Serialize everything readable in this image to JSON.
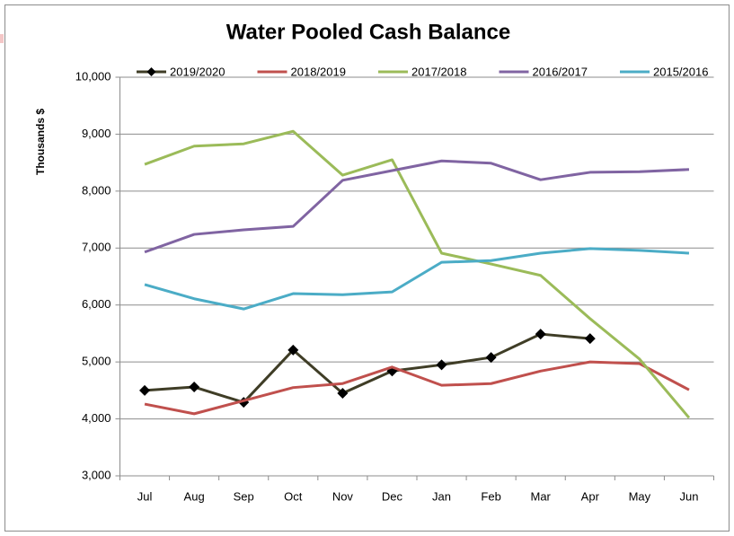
{
  "chart_data": {
    "type": "line",
    "title": "Water Pooled Cash Balance",
    "y_label": "Thousands $",
    "categories": [
      "Jul",
      "Aug",
      "Sep",
      "Oct",
      "Nov",
      "Dec",
      "Jan",
      "Feb",
      "Mar",
      "Apr",
      "May",
      "Jun"
    ],
    "ylim": [
      3000,
      10000
    ],
    "yticks": [
      {
        "value": 3000,
        "label": "3,000"
      },
      {
        "value": 4000,
        "label": "4,000"
      },
      {
        "value": 5000,
        "label": "5,000"
      },
      {
        "value": 6000,
        "label": "6,000"
      },
      {
        "value": 7000,
        "label": "7,000"
      },
      {
        "value": 8000,
        "label": "8,000"
      },
      {
        "value": 9000,
        "label": "9,000"
      },
      {
        "value": 10000,
        "label": "10,000"
      }
    ],
    "grid": true,
    "legend": "top",
    "series": [
      {
        "name": "2019/2020",
        "color": "#3f3d26",
        "marker": "diamond",
        "values": [
          4500,
          4560,
          4290,
          5210,
          4450,
          4840,
          4950,
          5080,
          5490,
          5410,
          null,
          null
        ]
      },
      {
        "name": "2018/2019",
        "color": "#c0504d",
        "values": [
          4260,
          4090,
          4320,
          4550,
          4620,
          4910,
          4590,
          4620,
          4840,
          5000,
          4970,
          4510
        ]
      },
      {
        "name": "2017/2018",
        "color": "#9bbb59",
        "values": [
          8470,
          8790,
          8830,
          9050,
          8280,
          8550,
          6910,
          6720,
          6520,
          5760,
          5050,
          4020
        ]
      },
      {
        "name": "2016/2017",
        "color": "#8064a2",
        "values": [
          6930,
          7240,
          7320,
          7380,
          8190,
          8360,
          8530,
          8490,
          8200,
          8330,
          8340,
          8380
        ]
      },
      {
        "name": "2015/2016",
        "color": "#4bacc6",
        "values": [
          6360,
          6110,
          5930,
          6200,
          6180,
          6230,
          6750,
          6780,
          6910,
          6990,
          6960,
          6910
        ]
      }
    ]
  }
}
